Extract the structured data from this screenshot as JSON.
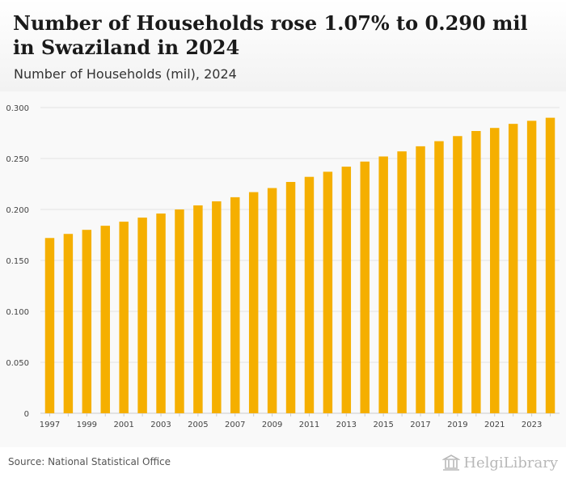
{
  "header": {
    "title": "Number of Households rose 1.07% to 0.290 mil in Swaziland in 2024",
    "subtitle": "Number of Households (mil), 2024"
  },
  "footer": {
    "source": "Source: National Statistical Office",
    "logo_text": "HelgiLibrary"
  },
  "colors": {
    "bar": "#F5AF00",
    "grid": "#e3e3e3",
    "background": "#f9f9f9"
  },
  "chart_data": {
    "type": "bar",
    "title": "Number of Households rose 1.07% to 0.290 mil in Swaziland in 2024",
    "subtitle": "Number of Households (mil), 2024",
    "xlabel": "",
    "ylabel": "",
    "ylim": [
      0,
      0.3
    ],
    "grid": true,
    "legend": "none",
    "categories": [
      "1997",
      "1998",
      "1999",
      "2000",
      "2001",
      "2002",
      "2003",
      "2004",
      "2005",
      "2006",
      "2007",
      "2008",
      "2009",
      "2010",
      "2011",
      "2012",
      "2013",
      "2014",
      "2015",
      "2016",
      "2017",
      "2018",
      "2019",
      "2020",
      "2021",
      "2022",
      "2023",
      "2024"
    ],
    "values": [
      0.172,
      0.176,
      0.18,
      0.184,
      0.188,
      0.192,
      0.196,
      0.2,
      0.204,
      0.208,
      0.212,
      0.217,
      0.221,
      0.227,
      0.232,
      0.237,
      0.242,
      0.247,
      0.252,
      0.257,
      0.262,
      0.267,
      0.272,
      0.277,
      0.28,
      0.284,
      0.287,
      0.29
    ],
    "x_tick_labels": [
      "1997",
      "1999",
      "2001",
      "2003",
      "2005",
      "2007",
      "2009",
      "2011",
      "2013",
      "2015",
      "2017",
      "2019",
      "2021",
      "2023"
    ],
    "y_ticks": [
      0,
      0.05,
      0.1,
      0.15,
      0.2,
      0.25,
      0.3
    ],
    "y_tick_labels": [
      "0",
      "0.050",
      "0.100",
      "0.150",
      "0.200",
      "0.250",
      "0.300"
    ]
  }
}
